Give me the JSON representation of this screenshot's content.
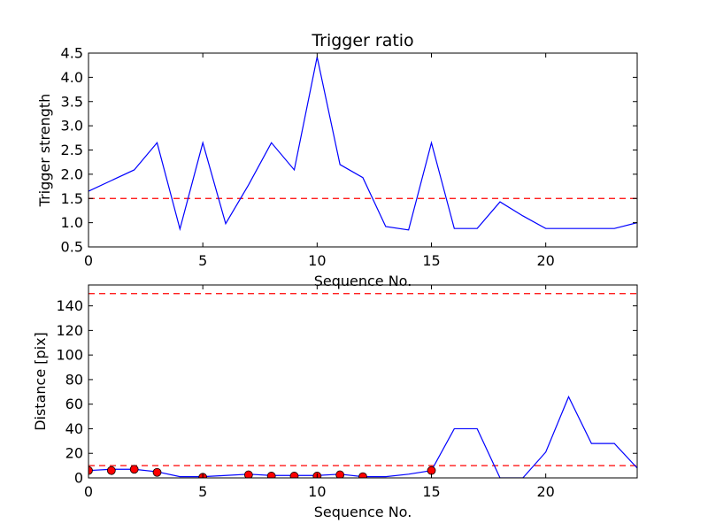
{
  "chart_data": [
    {
      "type": "line",
      "title": "Trigger ratio",
      "xlabel": "Sequence No.",
      "ylabel": "Trigger strength",
      "xlim": [
        0,
        24
      ],
      "ylim": [
        0.5,
        4.5
      ],
      "xticks": [
        0,
        5,
        10,
        15,
        20
      ],
      "xtick_labels": [
        "0",
        "5",
        "10",
        "15",
        "20"
      ],
      "yticks": [
        0.5,
        1.0,
        1.5,
        2.0,
        2.5,
        3.0,
        3.5,
        4.0,
        4.5
      ],
      "ytick_labels": [
        "0.5",
        "1.0",
        "1.5",
        "2.0",
        "2.5",
        "3.0",
        "3.5",
        "4.0",
        "4.5"
      ],
      "grid": false,
      "series": [
        {
          "kind": "line",
          "color": "#0000ff",
          "x": [
            0,
            1,
            2,
            3,
            4,
            5,
            6,
            7,
            8,
            9,
            10,
            11,
            12,
            13,
            14,
            15,
            16,
            17,
            18,
            19,
            20,
            21,
            22,
            23,
            24
          ],
          "y": [
            1.65,
            1.87,
            2.09,
            2.65,
            0.87,
            2.65,
            0.98,
            1.78,
            2.65,
            2.09,
            4.42,
            2.2,
            1.93,
            0.92,
            0.85,
            2.65,
            0.88,
            0.88,
            1.43,
            1.14,
            0.88,
            0.88,
            0.88,
            0.88,
            1.0
          ]
        }
      ],
      "hlines": [
        {
          "y": 1.5,
          "color": "#ff0000",
          "style": "dashed"
        }
      ]
    },
    {
      "type": "line",
      "title": "",
      "xlabel": "Sequence No.",
      "ylabel": "Distance [pix]",
      "xlim": [
        0,
        24
      ],
      "ylim": [
        0,
        157
      ],
      "xticks": [
        0,
        5,
        10,
        15,
        20
      ],
      "xtick_labels": [
        "0",
        "5",
        "10",
        "15",
        "20"
      ],
      "yticks": [
        0,
        20,
        40,
        60,
        80,
        100,
        120,
        140
      ],
      "ytick_labels": [
        "0",
        "20",
        "40",
        "60",
        "80",
        "100",
        "120",
        "140"
      ],
      "grid": false,
      "series": [
        {
          "kind": "line",
          "color": "#0000ff",
          "x": [
            0,
            1,
            2,
            3,
            4,
            5,
            6,
            7,
            8,
            9,
            10,
            11,
            12,
            13,
            14,
            15,
            16,
            17,
            18,
            19,
            20,
            21,
            22,
            23,
            24
          ],
          "y": [
            6,
            7,
            7,
            5,
            1,
            1,
            2,
            3,
            2,
            2,
            2,
            3,
            1,
            1,
            3,
            6,
            40,
            40,
            0,
            0,
            21,
            66,
            28,
            28,
            8
          ]
        },
        {
          "kind": "scatter",
          "color": "#ff0000",
          "x": [
            0,
            1,
            2,
            3,
            5,
            7,
            8,
            9,
            10,
            11,
            12,
            15
          ],
          "y": [
            6,
            6,
            7,
            4.5,
            0.5,
            2.5,
            1.5,
            1.5,
            1.5,
            2.5,
            1,
            6
          ]
        }
      ],
      "hlines": [
        {
          "y": 150,
          "color": "#ff0000",
          "style": "dashed"
        },
        {
          "y": 10,
          "color": "#ff0000",
          "style": "dashed"
        }
      ]
    }
  ]
}
